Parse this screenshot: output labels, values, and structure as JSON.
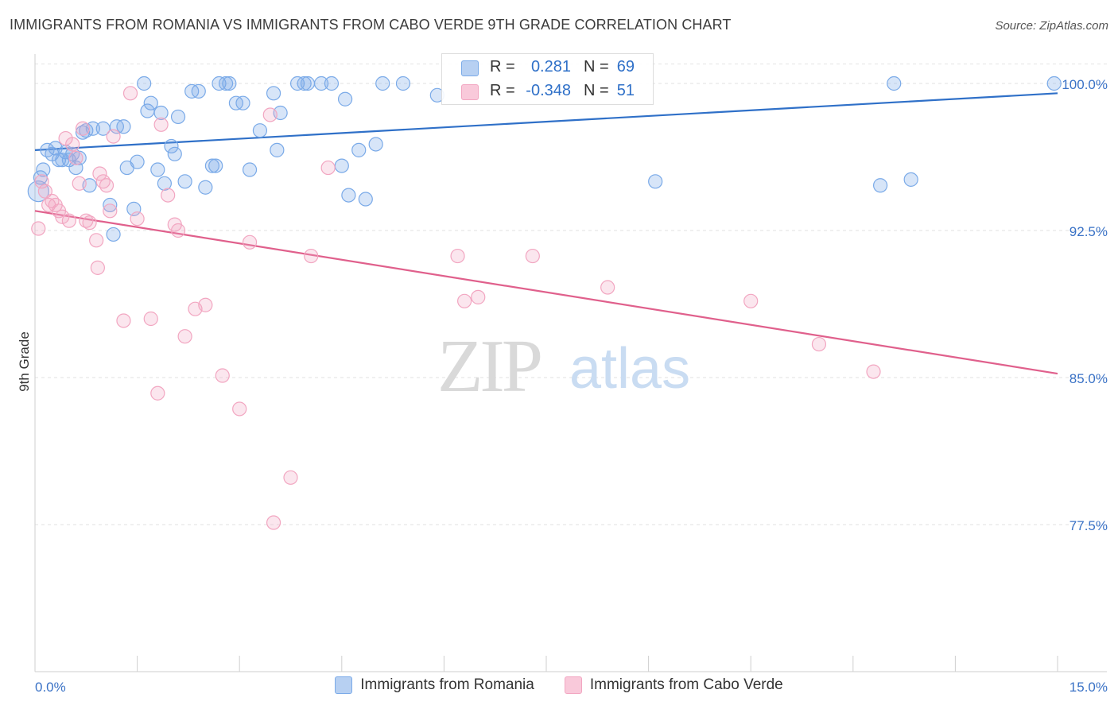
{
  "title": "IMMIGRANTS FROM ROMANIA VS IMMIGRANTS FROM CABO VERDE 9TH GRADE CORRELATION CHART",
  "source": "Source: ZipAtlas.com",
  "watermark": {
    "zip": "ZIP",
    "atlas": "atlas"
  },
  "legend_top": {
    "rows": [
      {
        "r_label": "R =",
        "r_value": "0.281",
        "n_label": "N =",
        "n_value": "69"
      },
      {
        "r_label": "R =",
        "r_value": "-0.348",
        "n_label": "N =",
        "n_value": "51"
      }
    ]
  },
  "chart_data": {
    "type": "scatter",
    "title": "IMMIGRANTS FROM ROMANIA VS IMMIGRANTS FROM CABO VERDE 9TH GRADE CORRELATION CHART",
    "xlabel": "",
    "ylabel": "9th Grade",
    "xlim": [
      0,
      15
    ],
    "ylim": [
      70.0,
      101.5
    ],
    "x_tick_labels": [
      "0.0%",
      "15.0%"
    ],
    "y_ticks": [
      77.5,
      85.0,
      92.5,
      100.0
    ],
    "y_tick_labels": [
      "77.5%",
      "85.0%",
      "92.5%",
      "100.0%"
    ],
    "grid": true,
    "legend_position": "bottom",
    "series": [
      {
        "name": "Immigrants from Romania",
        "color": "#7aaae8",
        "line_color": "#2f70c8",
        "r": 0.281,
        "n": 69,
        "trend": [
          [
            0,
            96.6
          ],
          [
            15,
            99.5
          ]
        ],
        "x": [
          0.05,
          0.08,
          0.12,
          0.25,
          0.3,
          0.35,
          0.4,
          0.45,
          0.5,
          0.55,
          0.6,
          0.65,
          0.7,
          0.75,
          0.8,
          0.85,
          1.0,
          1.1,
          1.15,
          1.2,
          1.3,
          1.35,
          1.45,
          1.5,
          1.6,
          1.65,
          1.7,
          1.8,
          1.85,
          1.9,
          2.0,
          2.05,
          2.1,
          2.2,
          2.3,
          2.4,
          2.5,
          2.6,
          2.65,
          2.7,
          2.8,
          2.85,
          2.95,
          3.05,
          3.15,
          3.3,
          3.5,
          3.55,
          3.6,
          3.85,
          3.95,
          4.0,
          4.2,
          4.35,
          4.5,
          4.55,
          4.6,
          4.75,
          4.85,
          5.0,
          5.1,
          5.4,
          5.9,
          9.1,
          12.4,
          12.6,
          12.85,
          14.95,
          0.18
        ],
        "y": [
          94.5,
          95.2,
          95.6,
          96.4,
          96.7,
          96.1,
          96.1,
          96.5,
          96.1,
          96.4,
          95.7,
          96.2,
          97.5,
          97.6,
          94.8,
          97.7,
          97.7,
          93.8,
          92.3,
          97.8,
          97.8,
          95.7,
          93.6,
          96.0,
          100.0,
          98.6,
          99.0,
          95.6,
          98.5,
          94.9,
          96.8,
          96.4,
          98.3,
          95.0,
          99.6,
          99.6,
          94.7,
          95.8,
          95.8,
          100.0,
          100.0,
          100.0,
          99.0,
          99.0,
          95.6,
          97.6,
          99.5,
          96.6,
          98.5,
          100.0,
          100.0,
          100.0,
          100.0,
          100.0,
          95.8,
          99.2,
          94.3,
          96.6,
          94.1,
          96.9,
          100.0,
          100.0,
          99.4,
          95.0,
          94.8,
          100.0,
          95.1,
          100.0,
          96.6
        ]
      },
      {
        "name": "Immigrants from Cabo Verde",
        "color": "#f2a6c1",
        "line_color": "#e0608c",
        "r": -0.348,
        "n": 51,
        "trend": [
          [
            0,
            93.5
          ],
          [
            15,
            85.2
          ]
        ],
        "x": [
          0.05,
          0.1,
          0.15,
          0.2,
          0.25,
          0.3,
          0.35,
          0.4,
          0.45,
          0.5,
          0.55,
          0.6,
          0.65,
          0.7,
          0.75,
          0.8,
          0.9,
          0.95,
          1.0,
          1.05,
          1.1,
          1.15,
          1.3,
          1.4,
          1.5,
          1.7,
          1.8,
          1.85,
          1.95,
          2.05,
          2.1,
          2.2,
          2.35,
          2.5,
          2.75,
          3.0,
          3.15,
          3.45,
          3.5,
          3.75,
          4.05,
          4.3,
          6.2,
          6.3,
          6.5,
          7.3,
          8.4,
          10.5,
          11.5,
          12.3,
          0.92
        ],
        "y": [
          92.6,
          95.0,
          94.5,
          93.8,
          94.0,
          93.8,
          93.5,
          93.2,
          97.2,
          93.0,
          96.9,
          96.2,
          94.9,
          97.7,
          93.0,
          92.9,
          92.0,
          95.4,
          95.0,
          94.8,
          93.5,
          97.3,
          87.9,
          99.5,
          93.1,
          88.0,
          84.2,
          97.9,
          94.3,
          92.8,
          92.5,
          87.1,
          88.5,
          88.7,
          85.1,
          83.4,
          91.9,
          98.4,
          77.6,
          79.9,
          91.2,
          95.7,
          91.2,
          88.9,
          89.1,
          91.2,
          89.6,
          88.9,
          86.7,
          85.3,
          90.6
        ]
      }
    ]
  },
  "bottom_legend": [
    {
      "label": "Immigrants from Romania",
      "color": "#7aaae8"
    },
    {
      "label": "Immigrants from Cabo Verde",
      "color": "#f2a6c1"
    }
  ]
}
